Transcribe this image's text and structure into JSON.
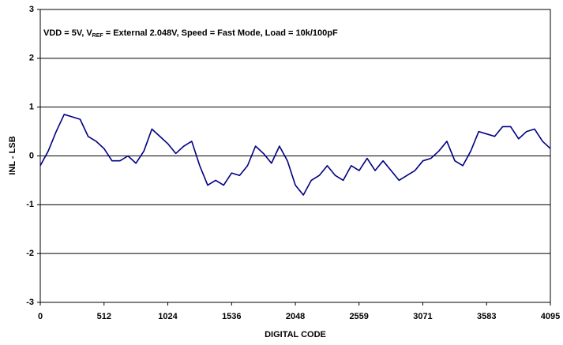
{
  "chart_data": {
    "type": "line",
    "annotation_parts": [
      "VDD = 5V, V",
      "REF",
      " = External 2.048V, Speed = Fast Mode, Load = 10k/100pF"
    ],
    "xlabel": "DIGITAL CODE",
    "ylabel": "INL - LSB",
    "xlim": [
      0,
      4095
    ],
    "ylim": [
      -3,
      3
    ],
    "xticks": [
      0,
      512,
      1024,
      1536,
      2048,
      2559,
      3071,
      3583,
      4095
    ],
    "yticks": [
      -3,
      -2,
      -1,
      0,
      1,
      2,
      3
    ],
    "grid": true,
    "x": [
      0,
      64,
      128,
      192,
      256,
      320,
      384,
      448,
      512,
      576,
      640,
      704,
      768,
      832,
      896,
      960,
      1024,
      1088,
      1152,
      1216,
      1280,
      1344,
      1408,
      1472,
      1536,
      1600,
      1664,
      1728,
      1792,
      1856,
      1920,
      1984,
      2048,
      2112,
      2176,
      2240,
      2304,
      2368,
      2432,
      2496,
      2560,
      2624,
      2688,
      2752,
      2816,
      2880,
      2944,
      3008,
      3072,
      3136,
      3200,
      3264,
      3328,
      3392,
      3456,
      3520,
      3584,
      3648,
      3712,
      3776,
      3840,
      3904,
      3968,
      4032,
      4095
    ],
    "series": [
      {
        "color": "#000080",
        "values": [
          -0.2,
          0.1,
          0.5,
          0.85,
          0.8,
          0.75,
          0.4,
          0.3,
          0.15,
          -0.1,
          -0.1,
          0.0,
          -0.15,
          0.1,
          0.55,
          0.4,
          0.25,
          0.05,
          0.2,
          0.3,
          -0.2,
          -0.6,
          -0.5,
          -0.6,
          -0.35,
          -0.4,
          -0.2,
          0.2,
          0.05,
          -0.15,
          0.2,
          -0.1,
          -0.6,
          -0.8,
          -0.5,
          -0.4,
          -0.2,
          -0.4,
          -0.5,
          -0.2,
          -0.3,
          -0.05,
          -0.3,
          -0.1,
          -0.3,
          -0.5,
          -0.4,
          -0.3,
          -0.1,
          -0.05,
          0.1,
          0.3,
          -0.1,
          -0.2,
          0.1,
          0.5,
          0.45,
          0.4,
          0.6,
          0.6,
          0.35,
          0.5,
          0.55,
          0.3,
          0.15
        ]
      }
    ]
  }
}
